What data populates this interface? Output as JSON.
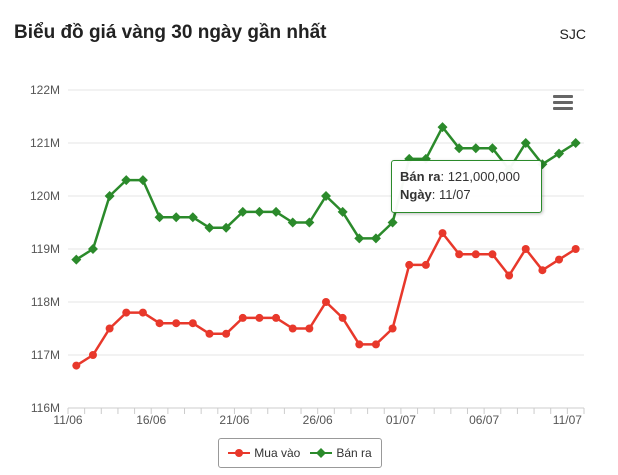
{
  "header": {
    "title": "Biểu đồ giá vàng 30 ngày gần nhất",
    "source": "SJC"
  },
  "tooltip": {
    "price_label": "Bán ra",
    "price_value": "121,000,000",
    "date_label": "Ngày",
    "date_value": "11/07"
  },
  "legend": {
    "buy": "Mua vào",
    "sell": "Bán ra"
  },
  "icons": {
    "menu": "hamburger-menu-icon"
  },
  "chart_data": {
    "type": "line",
    "y_unit": "M",
    "ylim": [
      116,
      122
    ],
    "y_ticks": [
      "116M",
      "117M",
      "118M",
      "119M",
      "120M",
      "121M",
      "122M"
    ],
    "x_tick_labels": [
      "11/06",
      "16/06",
      "21/06",
      "26/06",
      "01/07",
      "06/07",
      "11/07"
    ],
    "grid": true,
    "legend_position": "bottom-center",
    "series": [
      {
        "name": "Mua vào",
        "color": "#e8382b",
        "marker": "circle",
        "values": [
          116.8,
          117.0,
          117.5,
          117.8,
          117.8,
          117.6,
          117.6,
          117.6,
          117.4,
          117.4,
          117.7,
          117.7,
          117.7,
          117.5,
          117.5,
          118.0,
          117.7,
          117.2,
          117.2,
          117.5,
          118.7,
          118.7,
          119.3,
          118.9,
          118.9,
          118.9,
          118.5,
          119.0,
          118.6,
          118.8,
          119.0
        ]
      },
      {
        "name": "Bán ra",
        "color": "#2b8a2b",
        "marker": "diamond",
        "values": [
          118.8,
          119.0,
          120.0,
          120.3,
          120.3,
          119.6,
          119.6,
          119.6,
          119.4,
          119.4,
          119.7,
          119.7,
          119.7,
          119.5,
          119.5,
          120.0,
          119.7,
          119.2,
          119.2,
          119.5,
          120.7,
          120.7,
          121.3,
          120.9,
          120.9,
          120.9,
          120.5,
          121.0,
          120.6,
          120.8,
          121.0
        ]
      }
    ]
  }
}
